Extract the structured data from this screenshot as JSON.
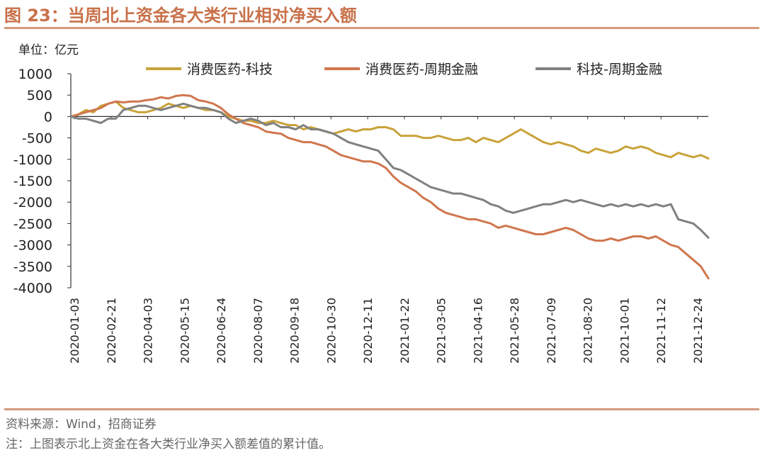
{
  "header": {
    "title": "图 23：当周北上资金各大类行业相对净买入额",
    "unit": "单位：亿元"
  },
  "footer": {
    "source": "资料来源：Wind，招商证券",
    "note": "注：上图表示北上资金在各大类行业净买入额差值的累计值。"
  },
  "chart_data": {
    "type": "line",
    "ylim": [
      -4000,
      1000
    ],
    "yticks": [
      1000,
      500,
      0,
      -500,
      -1000,
      -1500,
      -2000,
      -2500,
      -3000,
      -3500,
      -4000
    ],
    "xticks": [
      "2020-01-03",
      "2020-02-21",
      "2020-04-03",
      "2020-05-15",
      "2020-06-24",
      "2020-08-07",
      "2020-09-18",
      "2020-10-30",
      "2020-12-11",
      "2021-01-22",
      "2021-03-05",
      "2021-04-16",
      "2021-05-28",
      "2021-07-09",
      "2021-08-20",
      "2021-10-01",
      "2021-11-12",
      "2021-12-24"
    ],
    "legend_position": "top",
    "series": [
      {
        "name": "消费医药-科技",
        "color": "#c9a33a",
        "values": [
          0,
          50,
          150,
          100,
          250,
          300,
          350,
          200,
          150,
          100,
          100,
          150,
          200,
          300,
          250,
          200,
          250,
          200,
          150,
          150,
          100,
          0,
          -50,
          -100,
          -100,
          -150,
          -150,
          -100,
          -150,
          -200,
          -200,
          -300,
          -250,
          -300,
          -350,
          -400,
          -350,
          -300,
          -350,
          -300,
          -300,
          -250,
          -250,
          -300,
          -450,
          -450,
          -450,
          -500,
          -500,
          -450,
          -500,
          -550,
          -550,
          -500,
          -600,
          -500,
          -550,
          -600,
          -500,
          -400,
          -300,
          -400,
          -500,
          -600,
          -650,
          -600,
          -650,
          -700,
          -800,
          -850,
          -750,
          -800,
          -850,
          -800,
          -700,
          -750,
          -700,
          -750,
          -850,
          -900,
          -950,
          -850,
          -900,
          -950,
          -900,
          -980
        ]
      },
      {
        "name": "消费医药-周期金融",
        "color": "#d0764e",
        "values": [
          0,
          50,
          100,
          150,
          200,
          300,
          350,
          330,
          350,
          350,
          380,
          400,
          450,
          420,
          480,
          500,
          480,
          380,
          350,
          300,
          200,
          50,
          -50,
          -150,
          -200,
          -250,
          -350,
          -380,
          -400,
          -500,
          -550,
          -600,
          -600,
          -650,
          -700,
          -800,
          -900,
          -950,
          -1000,
          -1050,
          -1050,
          -1100,
          -1200,
          -1400,
          -1550,
          -1650,
          -1750,
          -1900,
          -2000,
          -2150,
          -2250,
          -2300,
          -2350,
          -2400,
          -2400,
          -2450,
          -2500,
          -2600,
          -2550,
          -2600,
          -2650,
          -2700,
          -2750,
          -2750,
          -2700,
          -2650,
          -2600,
          -2650,
          -2750,
          -2850,
          -2900,
          -2900,
          -2850,
          -2900,
          -2850,
          -2800,
          -2800,
          -2850,
          -2800,
          -2900,
          -3000,
          -3050,
          -3200,
          -3350,
          -3500,
          -3780
        ]
      },
      {
        "name": "科技-周期金融",
        "color": "#808080",
        "values": [
          0,
          -50,
          -50,
          -100,
          -150,
          -50,
          -50,
          150,
          200,
          250,
          250,
          200,
          150,
          200,
          250,
          300,
          250,
          200,
          200,
          150,
          100,
          -50,
          -150,
          -100,
          -50,
          -100,
          -200,
          -150,
          -250,
          -250,
          -300,
          -200,
          -300,
          -300,
          -350,
          -400,
          -500,
          -600,
          -650,
          -700,
          -750,
          -800,
          -1000,
          -1200,
          -1250,
          -1350,
          -1450,
          -1550,
          -1650,
          -1700,
          -1750,
          -1800,
          -1800,
          -1850,
          -1900,
          -1950,
          -2050,
          -2100,
          -2200,
          -2250,
          -2200,
          -2150,
          -2100,
          -2050,
          -2050,
          -2000,
          -1950,
          -2000,
          -1950,
          -2000,
          -2050,
          -2100,
          -2050,
          -2100,
          -2050,
          -2100,
          -2050,
          -2100,
          -2050,
          -2100,
          -2050,
          -2400,
          -2450,
          -2500,
          -2650,
          -2830
        ]
      }
    ]
  }
}
